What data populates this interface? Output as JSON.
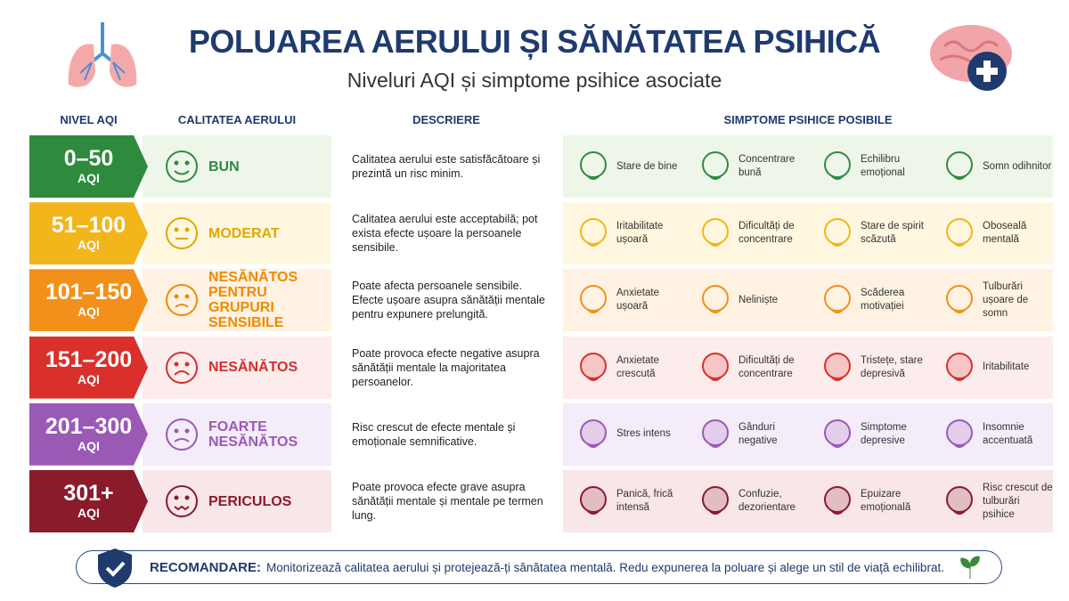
{
  "header": {
    "title": "POLUAREA AERULUI ȘI SĂNĂTATEA PSIHICĂ",
    "subtitle": "Niveluri AQI și simptome psihice asociate"
  },
  "columns": [
    "NIVEL AQI",
    "CALITATEA AERULUI",
    "DESCRIERE",
    "SIMPTOME PSIHICE POSIBILE"
  ],
  "rows": [
    {
      "range": "0–50",
      "unit": "AQI",
      "quality": "BUN",
      "description": "Calitatea aerului este satisfăcătoare și prezintă un risc minim.",
      "symptoms": [
        "Stare de bine",
        "Concentrare bună",
        "Echilibru emoțional",
        "Somn odihnitor"
      ]
    },
    {
      "range": "51–100",
      "unit": "AQI",
      "quality": "MODERAT",
      "description": "Calitatea aerului este acceptabilă; pot exista efecte ușoare la persoanele sensibile.",
      "symptoms": [
        "Iritabilitate ușoară",
        "Dificultăți de concentrare",
        "Stare de spirit scăzută",
        "Oboseală mentală"
      ]
    },
    {
      "range": "101–150",
      "unit": "AQI",
      "quality": "NESĂNĂTOS PENTRU GRUPURI SENSIBILE",
      "description": "Poate afecta persoanele sensibile. Efecte ușoare asupra sănătății mentale pentru expunere prelungită.",
      "symptoms": [
        "Anxietate ușoară",
        "Neliniște",
        "Scăderea motivației",
        "Tulburări ușoare de somn"
      ]
    },
    {
      "range": "151–200",
      "unit": "AQI",
      "quality": "NESĂNĂTOS",
      "description": "Poate provoca efecte negative asupra sănătății mentale la majoritatea persoanelor.",
      "symptoms": [
        "Anxietate crescută",
        "Dificultăți de concentrare",
        "Tristețe, stare depresivă",
        "Iritabilitate"
      ]
    },
    {
      "range": "201–300",
      "unit": "AQI",
      "quality": "FOARTE NESĂNĂTOS",
      "description": "Risc crescut de efecte mentale și emoționale semnificative.",
      "symptoms": [
        "Stres intens",
        "Gânduri negative",
        "Simptome depresive",
        "Insomnie accentuată"
      ]
    },
    {
      "range": "301+",
      "unit": "AQI",
      "quality": "PERICULOS",
      "description": "Poate provoca efecte grave asupra sănătății mentale și mentale pe termen lung.",
      "symptoms": [
        "Panică, frică intensă",
        "Confuzie, dezorientare",
        "Epuizare emoțională",
        "Risc crescut de tulburări psihice"
      ]
    }
  ],
  "recommendation": {
    "label": "RECOMANDARE:",
    "text": "Monitorizează calitatea aerului și protejează-ți sănătatea mentală. Redu expunerea la poluare și alege un stil de viață echilibrat."
  }
}
